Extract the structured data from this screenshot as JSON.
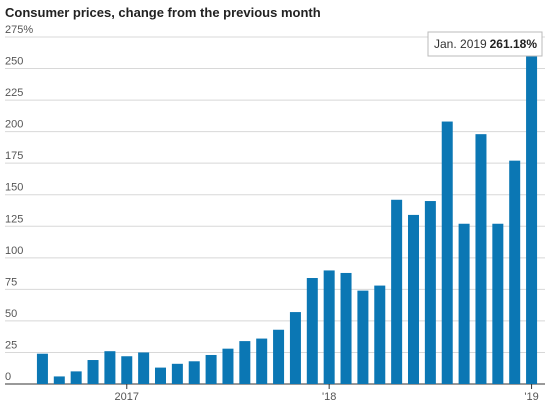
{
  "chart_data": {
    "type": "bar",
    "title": "Consumer prices, change from the previous month",
    "categories": [
      null,
      null,
      null,
      null,
      null,
      "2017",
      null,
      null,
      null,
      null,
      null,
      null,
      null,
      null,
      null,
      null,
      null,
      "'18",
      null,
      null,
      null,
      null,
      null,
      null,
      null,
      null,
      null,
      null,
      null,
      "'19"
    ],
    "values": [
      24,
      6,
      10,
      19,
      26,
      22,
      25,
      13,
      16,
      18,
      23,
      28,
      34,
      36,
      43,
      57,
      84,
      90,
      88,
      74,
      78,
      146,
      134,
      145,
      208,
      127,
      198,
      127,
      177,
      261.18
    ],
    "value_labels": [
      null,
      null,
      null,
      null,
      null,
      null,
      null,
      null,
      null,
      null,
      null,
      null,
      null,
      null,
      null,
      null,
      null,
      null,
      null,
      null,
      null,
      null,
      null,
      null,
      null,
      null,
      null,
      null,
      null,
      "261.18%"
    ],
    "tooltip_category": "Jan. 2019",
    "color": "#0b77b4",
    "ylim": [
      0,
      275
    ],
    "yticks": [
      0,
      25,
      50,
      75,
      100,
      125,
      150,
      175,
      200,
      225,
      250,
      {
        "value": 275,
        "label": "275%"
      }
    ],
    "grid": true
  }
}
